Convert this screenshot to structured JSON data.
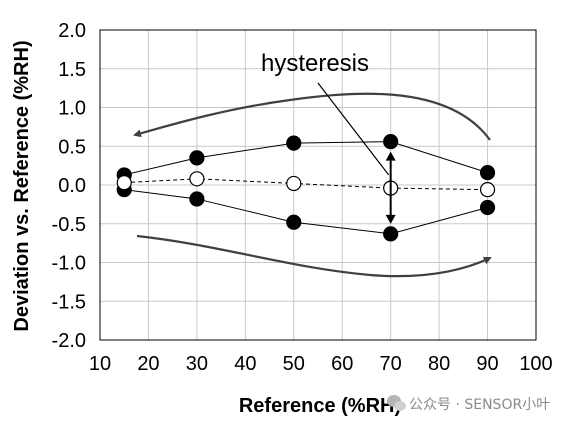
{
  "chart_data": {
    "type": "line",
    "title": "",
    "xlabel": "Reference (%RH)",
    "ylabel": "Deviation vs. Reference (%RH)",
    "xlim": [
      10,
      100
    ],
    "ylim": [
      -2.0,
      2.0
    ],
    "xticks": [
      "10",
      "20",
      "30",
      "40",
      "50",
      "60",
      "70",
      "80",
      "90",
      "100"
    ],
    "yticks": [
      "2.0",
      "1.5",
      "1.0",
      "0.5",
      "0.0",
      "-0.5",
      "-1.0",
      "-1.5",
      "-2.0"
    ],
    "grid": true,
    "series": [
      {
        "style": "solid-filled",
        "x": [
          15,
          30,
          50,
          70,
          90
        ],
        "y": [
          0.13,
          0.35,
          0.54,
          0.56,
          0.16
        ]
      },
      {
        "style": "solid-filled",
        "x": [
          15,
          30,
          50,
          70,
          90
        ],
        "y": [
          -0.06,
          -0.18,
          -0.48,
          -0.63,
          -0.29
        ]
      },
      {
        "style": "dashed-open",
        "x": [
          15,
          30,
          50,
          70,
          90
        ],
        "y": [
          0.03,
          0.08,
          0.02,
          -0.04,
          -0.06
        ]
      }
    ],
    "annotations": [
      {
        "text": "hysteresis",
        "points_to_x": 70
      }
    ],
    "colors": {
      "line": "#000000",
      "grid": "#c8c8c8",
      "arrow": "#404040"
    }
  },
  "watermark": {
    "icon": "wechat-icon",
    "text": "公众号 · SENSOR小叶"
  }
}
